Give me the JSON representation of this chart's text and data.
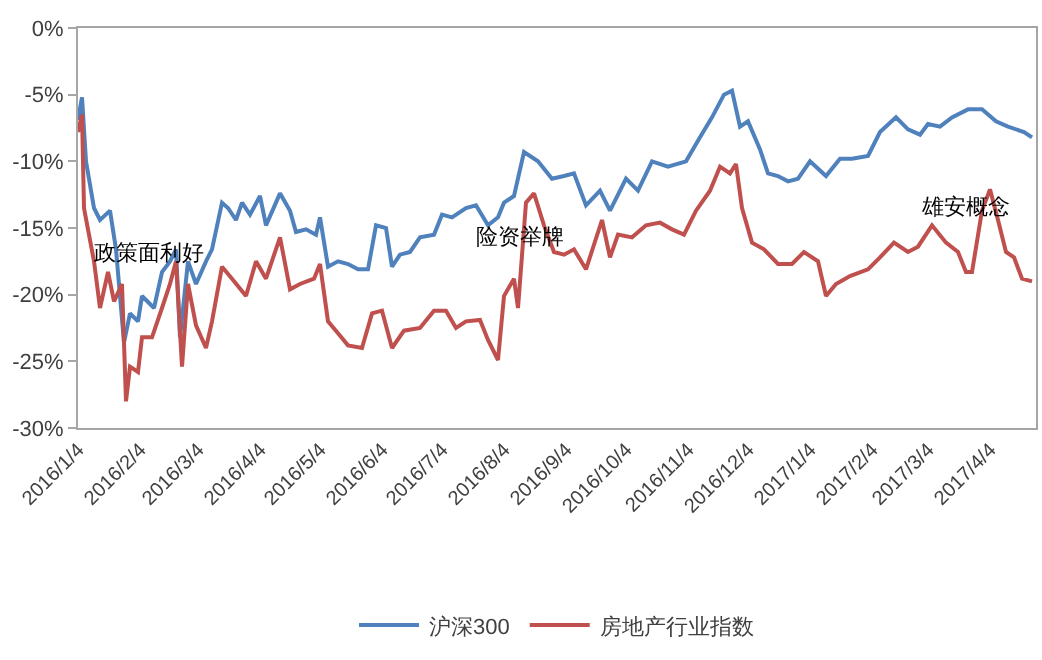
{
  "chart_data": {
    "type": "line",
    "xlim": [
      "2016-01-04",
      "2017-04-27"
    ],
    "ylim": [
      -30,
      0
    ],
    "xticks": [
      {
        "value": "2016-01-04",
        "label": "2016/1/4"
      },
      {
        "value": "2016-02-04",
        "label": "2016/2/4"
      },
      {
        "value": "2016-03-04",
        "label": "2016/3/4"
      },
      {
        "value": "2016-04-04",
        "label": "2016/4/4"
      },
      {
        "value": "2016-05-04",
        "label": "2016/5/4"
      },
      {
        "value": "2016-06-04",
        "label": "2016/6/4"
      },
      {
        "value": "2016-07-04",
        "label": "2016/7/4"
      },
      {
        "value": "2016-08-04",
        "label": "2016/8/4"
      },
      {
        "value": "2016-09-04",
        "label": "2016/9/4"
      },
      {
        "value": "2016-10-04",
        "label": "2016/10/4"
      },
      {
        "value": "2016-11-04",
        "label": "2016/11/4"
      },
      {
        "value": "2016-12-04",
        "label": "2016/12/4"
      },
      {
        "value": "2017-01-04",
        "label": "2017/1/4"
      },
      {
        "value": "2017-02-04",
        "label": "2017/2/4"
      },
      {
        "value": "2017-03-04",
        "label": "2017/3/4"
      },
      {
        "value": "2017-04-04",
        "label": "2017/4/4"
      }
    ],
    "yticks": [
      {
        "value": 0,
        "label": "0%"
      },
      {
        "value": -5,
        "label": "-5%"
      },
      {
        "value": -10,
        "label": "-10%"
      },
      {
        "value": -15,
        "label": "-15%"
      },
      {
        "value": -20,
        "label": "-20%"
      },
      {
        "value": -25,
        "label": "-25%"
      },
      {
        "value": -30,
        "label": "-30%"
      }
    ],
    "grid": false,
    "legend": "bottom",
    "marker": "none",
    "line_style": "solid",
    "annotations": [
      "政策面利好",
      "险资举牌",
      "雄安概念"
    ],
    "series": [
      {
        "name": "沪深300",
        "color": "#4f81bd",
        "x": [
          "2016-01-04",
          "2016-01-06",
          "2016-01-08",
          "2016-01-12",
          "2016-01-15",
          "2016-01-20",
          "2016-01-23",
          "2016-01-27",
          "2016-01-30",
          "2016-02-03",
          "2016-02-05",
          "2016-02-11",
          "2016-02-15",
          "2016-02-19",
          "2016-02-22",
          "2016-02-24",
          "2016-02-28",
          "2016-03-03",
          "2016-03-08",
          "2016-03-11",
          "2016-03-16",
          "2016-03-19",
          "2016-03-23",
          "2016-03-26",
          "2016-03-30",
          "2016-04-04",
          "2016-04-07",
          "2016-04-14",
          "2016-04-19",
          "2016-04-22",
          "2016-04-27",
          "2016-05-02",
          "2016-05-04",
          "2016-05-08",
          "2016-05-13",
          "2016-05-18",
          "2016-05-23",
          "2016-05-28",
          "2016-06-01",
          "2016-06-06",
          "2016-06-09",
          "2016-06-13",
          "2016-06-18",
          "2016-06-23",
          "2016-06-30",
          "2016-07-04",
          "2016-07-09",
          "2016-07-16",
          "2016-07-21",
          "2016-07-27",
          "2016-08-01",
          "2016-08-04",
          "2016-08-09",
          "2016-08-14",
          "2016-08-21",
          "2016-08-28",
          "2016-09-03",
          "2016-09-08",
          "2016-09-14",
          "2016-09-21",
          "2016-09-26",
          "2016-10-04",
          "2016-10-10",
          "2016-10-17",
          "2016-10-25",
          "2016-11-03",
          "2016-11-10",
          "2016-11-16",
          "2016-11-22",
          "2016-11-26",
          "2016-11-30",
          "2016-12-04",
          "2016-12-10",
          "2016-12-14",
          "2016-12-19",
          "2016-12-24",
          "2016-12-29",
          "2017-01-04",
          "2017-01-12",
          "2017-01-19",
          "2017-01-25",
          "2017-02-02",
          "2017-02-08",
          "2017-02-16",
          "2017-02-22",
          "2017-02-28",
          "2017-03-04",
          "2017-03-10",
          "2017-03-16",
          "2017-03-24",
          "2017-03-31",
          "2017-04-07",
          "2017-04-13",
          "2017-04-21",
          "2017-04-25"
        ],
        "values": [
          -6.9,
          -5.2,
          -10,
          -13.5,
          -14.4,
          -13.7,
          -16.6,
          -23.6,
          -21.4,
          -22,
          -20.1,
          -21,
          -18.3,
          -17.5,
          -16.6,
          -23.2,
          -17.5,
          -19.2,
          -17.5,
          -16.6,
          -13.1,
          -13.5,
          -14.4,
          -13.1,
          -14,
          -12.6,
          -14.8,
          -12.4,
          -13.7,
          -15.3,
          -15.1,
          -15.5,
          -14.2,
          -17.9,
          -17.5,
          -17.7,
          -18.1,
          -18.1,
          -14.8,
          -15,
          -17.9,
          -17,
          -16.8,
          -15.7,
          -15.5,
          -14,
          -14.2,
          -13.5,
          -13.3,
          -14.8,
          -14.2,
          -13.1,
          -12.6,
          -9.3,
          -10,
          -11.3,
          -11.1,
          -10.9,
          -13.3,
          -12.2,
          -13.7,
          -11.3,
          -12.2,
          -10,
          -10.4,
          -10,
          -8.2,
          -6.7,
          -5,
          -4.7,
          -7.4,
          -7,
          -9.1,
          -10.9,
          -11.1,
          -11.5,
          -11.3,
          -10,
          -11.1,
          -9.8,
          -9.8,
          -9.6,
          -7.8,
          -6.7,
          -7.6,
          -8,
          -7.2,
          -7.4,
          -6.7,
          -6.1,
          -6.1,
          -7,
          -7.4,
          -7.8,
          -8.2
        ]
      },
      {
        "name": "房地产行业指数",
        "color": "#c0504d",
        "x": [
          "2016-01-04",
          "2016-01-06",
          "2016-01-07",
          "2016-01-12",
          "2016-01-15",
          "2016-01-19",
          "2016-01-22",
          "2016-01-26",
          "2016-01-28",
          "2016-01-30",
          "2016-02-03",
          "2016-02-05",
          "2016-02-10",
          "2016-02-15",
          "2016-02-19",
          "2016-02-22",
          "2016-02-25",
          "2016-02-28",
          "2016-03-03",
          "2016-03-08",
          "2016-03-11",
          "2016-03-16",
          "2016-03-21",
          "2016-03-28",
          "2016-04-02",
          "2016-04-07",
          "2016-04-14",
          "2016-04-19",
          "2016-04-24",
          "2016-05-01",
          "2016-05-04",
          "2016-05-08",
          "2016-05-13",
          "2016-05-18",
          "2016-05-25",
          "2016-05-30",
          "2016-06-04",
          "2016-06-09",
          "2016-06-15",
          "2016-06-23",
          "2016-06-30",
          "2016-07-06",
          "2016-07-11",
          "2016-07-16",
          "2016-07-23",
          "2016-07-27",
          "2016-08-01",
          "2016-08-04",
          "2016-08-09",
          "2016-08-11",
          "2016-08-15",
          "2016-08-19",
          "2016-08-24",
          "2016-08-29",
          "2016-09-03",
          "2016-09-08",
          "2016-09-14",
          "2016-09-22",
          "2016-09-26",
          "2016-09-30",
          "2016-10-07",
          "2016-10-14",
          "2016-10-21",
          "2016-10-27",
          "2016-11-02",
          "2016-11-08",
          "2016-11-15",
          "2016-11-20",
          "2016-11-25",
          "2016-11-28",
          "2016-12-01",
          "2016-12-06",
          "2016-12-12",
          "2016-12-19",
          "2016-12-26",
          "2017-01-01",
          "2017-01-08",
          "2017-01-12",
          "2017-01-17",
          "2017-01-24",
          "2017-02-02",
          "2017-02-08",
          "2017-02-15",
          "2017-02-22",
          "2017-02-27",
          "2017-03-06",
          "2017-03-13",
          "2017-03-19",
          "2017-03-23",
          "2017-03-26",
          "2017-03-31",
          "2017-04-04",
          "2017-04-08",
          "2017-04-12",
          "2017-04-16",
          "2017-04-20",
          "2017-04-25"
        ],
        "values": [
          -7.8,
          -6.5,
          -13.5,
          -17.5,
          -21,
          -18.3,
          -20.5,
          -19.2,
          -28,
          -25.4,
          -25.8,
          -23.2,
          -23.2,
          -21,
          -19.2,
          -17.5,
          -25.4,
          -19.2,
          -22.3,
          -24,
          -22,
          -17.9,
          -18.8,
          -20.1,
          -17.5,
          -18.8,
          -15.7,
          -19.6,
          -19.2,
          -18.8,
          -17.7,
          -22,
          -22.9,
          -23.8,
          -24,
          -21.4,
          -21.2,
          -24,
          -22.7,
          -22.5,
          -21.2,
          -21.2,
          -22.5,
          -22,
          -21.9,
          -23.4,
          -24.9,
          -20.1,
          -18.8,
          -21,
          -13.1,
          -12.4,
          -14.8,
          -16.8,
          -17,
          -16.6,
          -18.1,
          -14.4,
          -17.2,
          -15.5,
          -15.7,
          -14.8,
          -14.6,
          -15.1,
          -15.5,
          -13.7,
          -12.2,
          -10.4,
          -10.9,
          -10.2,
          -13.5,
          -16.1,
          -16.6,
          -17.7,
          -17.7,
          -16.8,
          -17.5,
          -20.1,
          -19.2,
          -18.6,
          -18.1,
          -17.2,
          -16.1,
          -16.8,
          -16.4,
          -14.8,
          -16.1,
          -16.8,
          -18.3,
          -18.3,
          -13.7,
          -12.1,
          -14.4,
          -16.8,
          -17.2,
          -18.8,
          -19
        ]
      }
    ]
  }
}
